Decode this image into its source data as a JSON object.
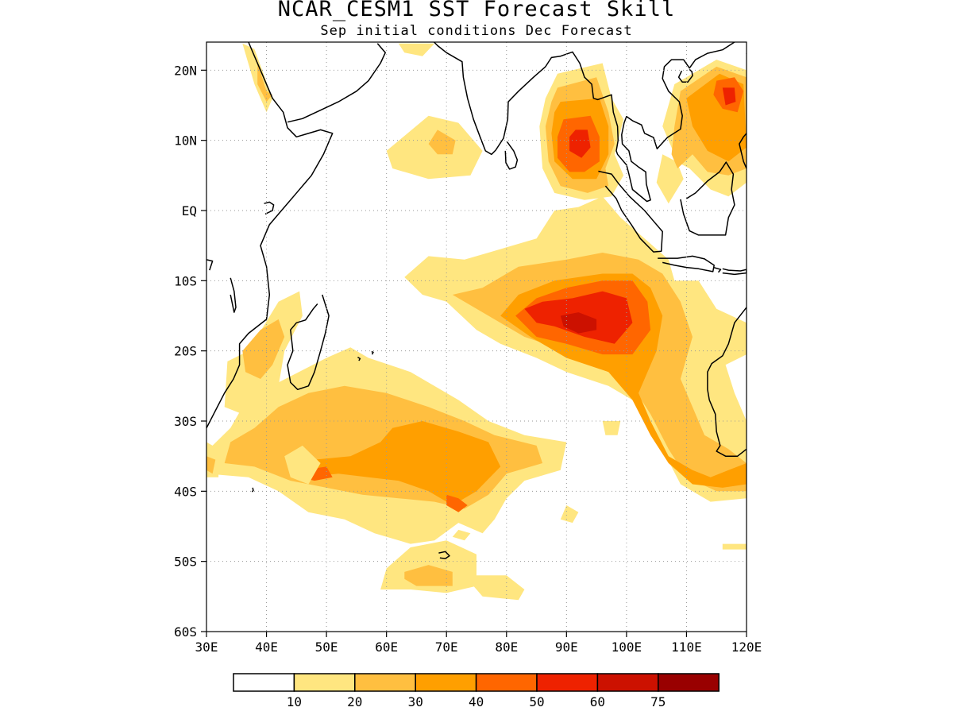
{
  "title": "NCAR_CESM1 SST Forecast Skill",
  "subtitle": "Sep initial conditions  Dec Forecast",
  "map": {
    "lon_range": [
      30,
      120
    ],
    "lat_range": [
      -60,
      24
    ],
    "x_ticks": [
      {
        "lon": 30,
        "label": "30E"
      },
      {
        "lon": 40,
        "label": "40E"
      },
      {
        "lon": 50,
        "label": "50E"
      },
      {
        "lon": 60,
        "label": "60E"
      },
      {
        "lon": 70,
        "label": "70E"
      },
      {
        "lon": 80,
        "label": "80E"
      },
      {
        "lon": 90,
        "label": "90E"
      },
      {
        "lon": 100,
        "label": "100E"
      },
      {
        "lon": 110,
        "label": "110E"
      },
      {
        "lon": 120,
        "label": "120E"
      }
    ],
    "y_ticks": [
      {
        "lat": 20,
        "label": "20N"
      },
      {
        "lat": 10,
        "label": "10N"
      },
      {
        "lat": 0,
        "label": "EQ"
      },
      {
        "lat": -10,
        "label": "10S"
      },
      {
        "lat": -20,
        "label": "20S"
      },
      {
        "lat": -30,
        "label": "30S"
      },
      {
        "lat": -40,
        "label": "40S"
      },
      {
        "lat": -50,
        "label": "50S"
      },
      {
        "lat": -60,
        "label": "60S"
      }
    ],
    "grid": "dotted"
  },
  "colorbar": {
    "colors": [
      "#ffffff",
      "#ffe680",
      "#ffbf40",
      "#ff9f00",
      "#ff6600",
      "#ee2200",
      "#cc1100",
      "#990000"
    ],
    "labels": [
      "10",
      "20",
      "30",
      "40",
      "50",
      "60",
      "75"
    ]
  }
}
